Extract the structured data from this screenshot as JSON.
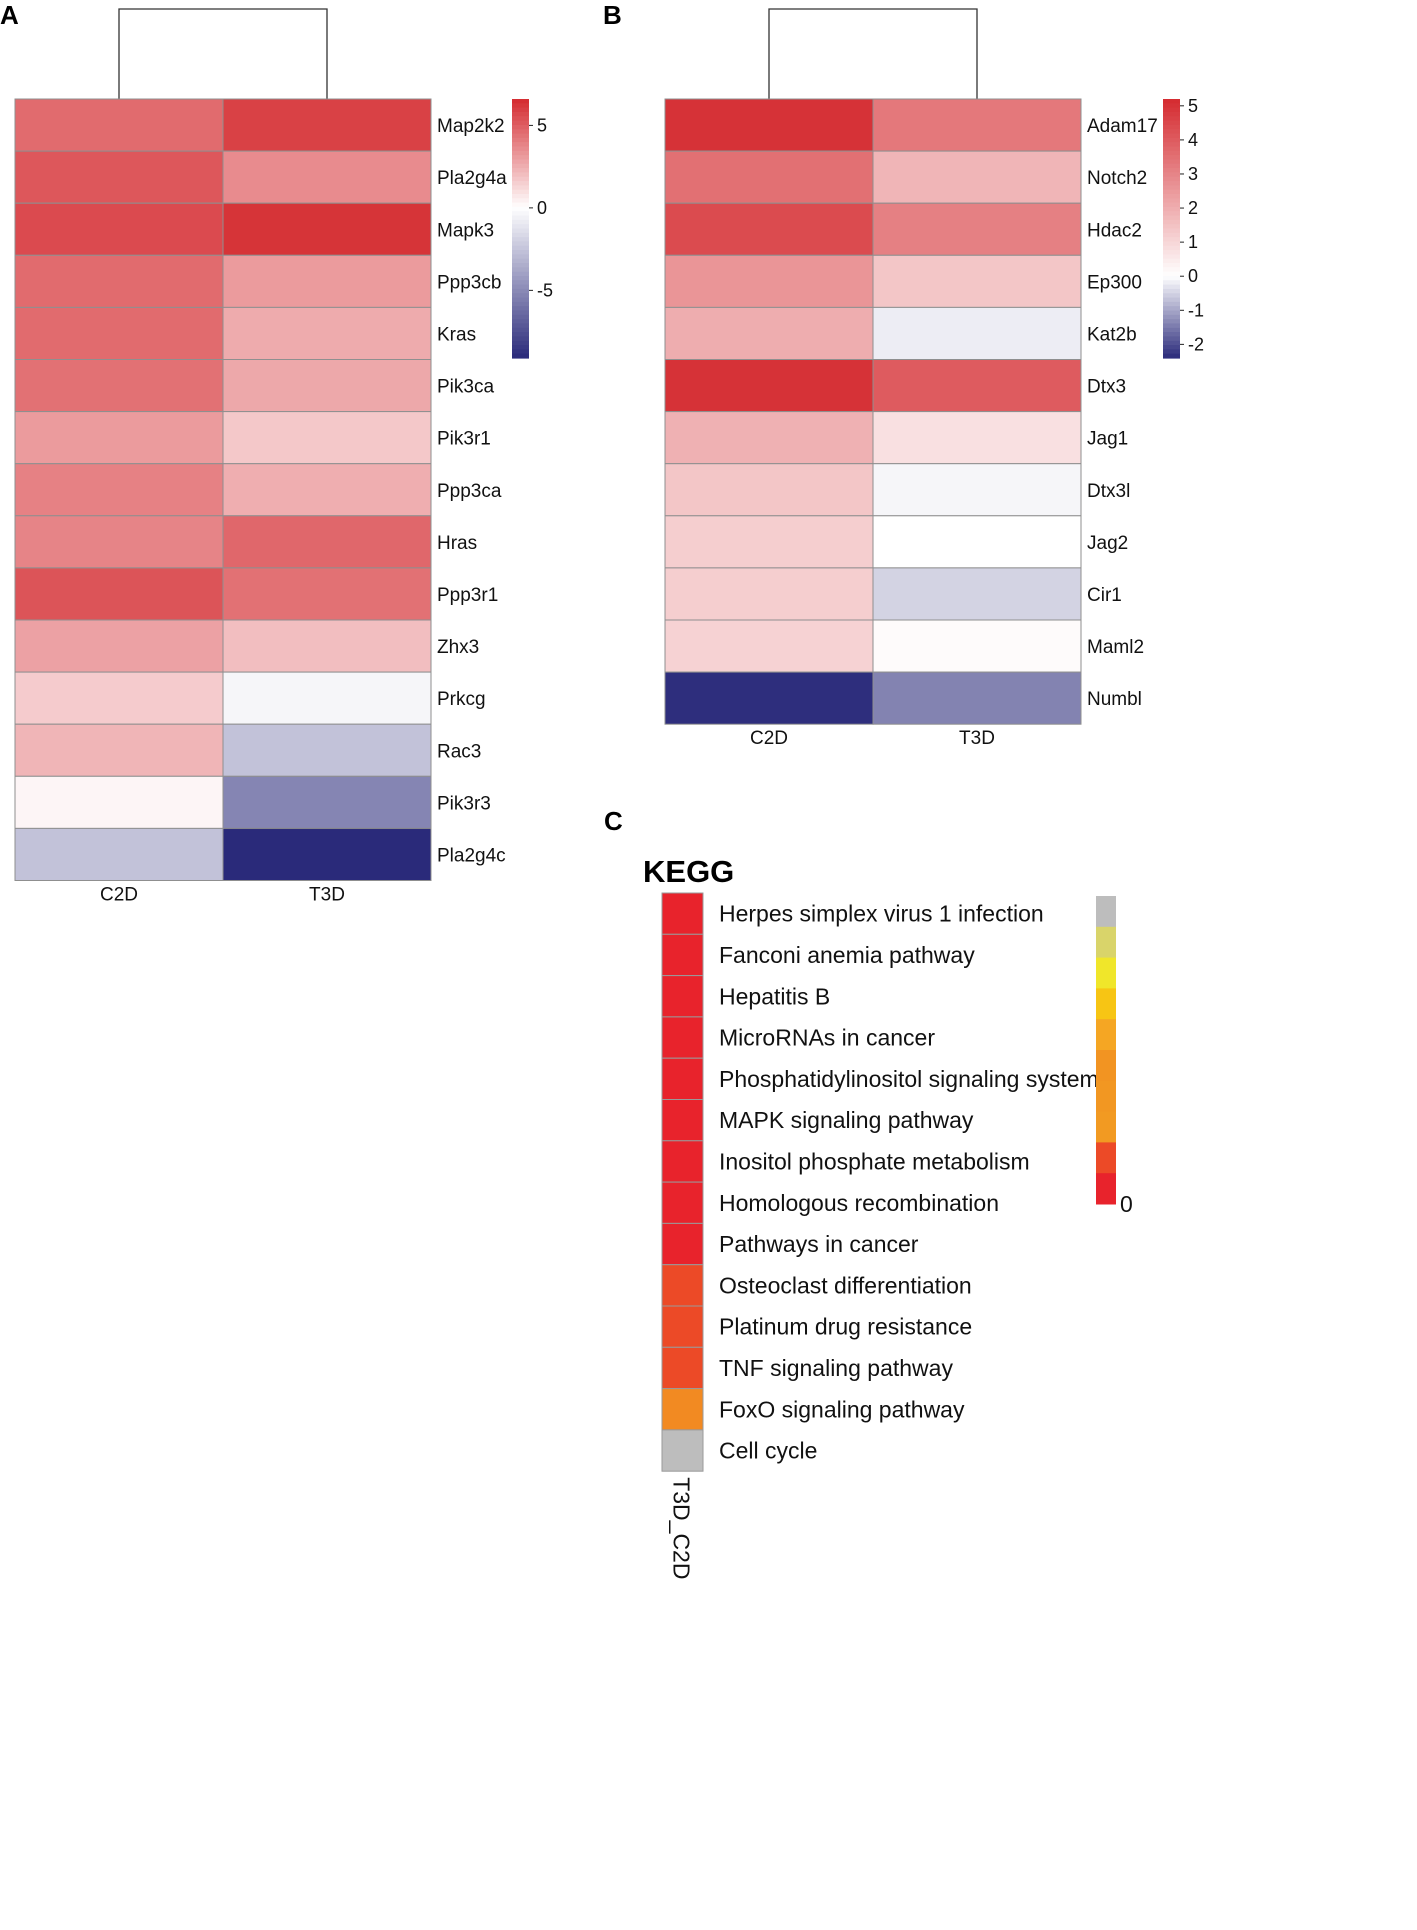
{
  "panel_labels": {
    "a": "A",
    "b": "B",
    "c": "C"
  },
  "kegg_title": "KEGG",
  "chart_data": [
    {
      "type": "heatmap",
      "panel": "A",
      "columns": [
        "C2D",
        "T3D"
      ],
      "rows": [
        "Map2k2",
        "Pla2g4a",
        "Mapk3",
        "Ppp3cb",
        "Kras",
        "Pik3ca",
        "Pik3r1",
        "Ppp3ca",
        "Hras",
        "Ppp3r1",
        "Zhx3",
        "Prkcg",
        "Rac3",
        "Pik3r3",
        "Pla2g4c"
      ],
      "values": [
        [
          4.6,
          5.9
        ],
        [
          5.2,
          3.6
        ],
        [
          5.6,
          6.3
        ],
        [
          4.6,
          3.1
        ],
        [
          4.6,
          2.6
        ],
        [
          4.4,
          2.7
        ],
        [
          3.1,
          1.7
        ],
        [
          3.9,
          2.5
        ],
        [
          3.8,
          4.7
        ],
        [
          5.3,
          4.4
        ],
        [
          2.9,
          2.0
        ],
        [
          1.6,
          -0.4
        ],
        [
          2.3,
          -2.6
        ],
        [
          0.3,
          -5.2
        ],
        [
          -2.6,
          -9.1
        ]
      ],
      "color_range": [
        -9.1,
        6.6
      ],
      "colorbar_ticks": [
        5,
        0,
        -5
      ],
      "colormap": [
        "#2a2a7a",
        "#ffffff",
        "#d42a2f"
      ],
      "dendrogram": "columns"
    },
    {
      "type": "heatmap",
      "panel": "B",
      "columns": [
        "C2D",
        "T3D"
      ],
      "rows": [
        "Adam17",
        "Notch2",
        "Hdac2",
        "Ep300",
        "Kat2b",
        "Dtx3",
        "Jag1",
        "Dtx3l",
        "Jag2",
        "Cir1",
        "Maml2",
        "Numbl"
      ],
      "values": [
        [
          5.0,
          3.3
        ],
        [
          3.5,
          1.8
        ],
        [
          4.4,
          3.1
        ],
        [
          2.6,
          1.4
        ],
        [
          2.0,
          -0.2
        ],
        [
          5.0,
          4.0
        ],
        [
          1.9,
          0.75
        ],
        [
          1.4,
          -0.1
        ],
        [
          1.2,
          0.0
        ],
        [
          1.2,
          -0.5
        ],
        [
          1.1,
          0.1
        ],
        [
          -2.35,
          -1.4
        ]
      ],
      "color_range": [
        -2.4,
        5.2
      ],
      "colorbar_ticks": [
        5,
        4,
        3,
        2,
        1,
        0,
        -1,
        -2
      ],
      "colormap": [
        "#2a2a7a",
        "#ffffff",
        "#d42a2f"
      ],
      "dendrogram": "columns"
    },
    {
      "type": "heatmap",
      "panel": "C",
      "title": "KEGG",
      "columns": [
        "T3D_C2D"
      ],
      "rows": [
        "Herpes simplex virus 1 infection",
        "Fanconi anemia pathway",
        "Hepatitis B",
        "MicroRNAs in cancer",
        "Phosphatidylinositol signaling system",
        "MAPK signaling pathway",
        "Inositol phosphate metabolism",
        "Homologous recombination",
        "Pathways in cancer",
        "Osteoclast differentiation",
        "Platinum drug resistance",
        "TNF signaling pathway",
        "FoxO signaling pathway",
        "Cell cycle"
      ],
      "cell_colors": [
        "#e8232c",
        "#e8232c",
        "#e8232c",
        "#e8232c",
        "#e8232c",
        "#e8232c",
        "#e8232c",
        "#e8232c",
        "#e8232c",
        "#ec4a27",
        "#ec4a27",
        "#ec4a27",
        "#f28a22",
        "#bdbdbd"
      ],
      "legend_colors": [
        "#bdbdbd",
        "#d9d46a",
        "#f0e62a",
        "#f7c514",
        "#f5a623",
        "#f29422",
        "#f29722",
        "#f29a22",
        "#ec4a27",
        "#e8232c"
      ],
      "legend_tick": "0"
    }
  ]
}
